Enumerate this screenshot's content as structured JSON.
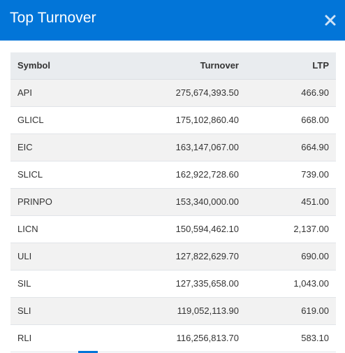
{
  "modal": {
    "title": "Top Turnover",
    "close_icon": "close-icon",
    "accent_color": "#0275d8"
  },
  "table": {
    "headers": {
      "symbol": "Symbol",
      "turnover": "Turnover",
      "ltp": "LTP"
    },
    "rows": [
      {
        "symbol": "API",
        "turnover": "275,674,393.50",
        "ltp": "466.90"
      },
      {
        "symbol": "GLICL",
        "turnover": "175,102,860.40",
        "ltp": "668.00"
      },
      {
        "symbol": "EIC",
        "turnover": "163,147,067.00",
        "ltp": "664.90"
      },
      {
        "symbol": "SLICL",
        "turnover": "162,922,728.60",
        "ltp": "739.00"
      },
      {
        "symbol": "PRINPO",
        "turnover": "153,340,000.00",
        "ltp": "451.00"
      },
      {
        "symbol": "LICN",
        "turnover": "150,594,462.10",
        "ltp": "2,137.00"
      },
      {
        "symbol": "ULI",
        "turnover": "127,822,629.70",
        "ltp": "690.00"
      },
      {
        "symbol": "SIL",
        "turnover": "127,335,658.00",
        "ltp": "1,043.00"
      },
      {
        "symbol": "SLI",
        "turnover": "119,052,113.90",
        "ltp": "619.00"
      },
      {
        "symbol": "RLI",
        "turnover": "116,256,813.70",
        "ltp": "583.10"
      }
    ]
  }
}
